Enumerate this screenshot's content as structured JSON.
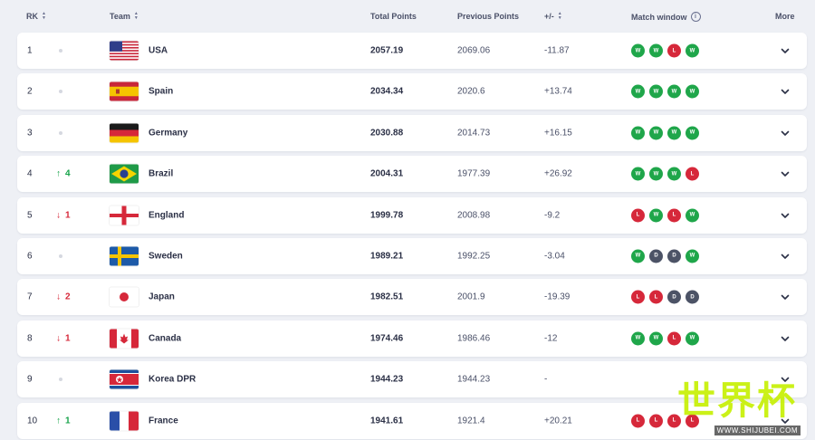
{
  "header": {
    "rank": "RK",
    "team": "Team",
    "total": "Total Points",
    "previous": "Previous Points",
    "diff": "+/-",
    "window": "Match window",
    "more": "More"
  },
  "rows": [
    {
      "rank": "1",
      "move": "",
      "dir": "none",
      "team": "USA",
      "flag": "usa-flag-icon",
      "total": "2057.19",
      "previous": "2069.06",
      "diff": "-11.87",
      "window": [
        "W",
        "W",
        "L",
        "W"
      ]
    },
    {
      "rank": "2",
      "move": "",
      "dir": "none",
      "team": "Spain",
      "flag": "spain-flag-icon",
      "total": "2034.34",
      "previous": "2020.6",
      "diff": "+13.74",
      "window": [
        "W",
        "W",
        "W",
        "W"
      ]
    },
    {
      "rank": "3",
      "move": "",
      "dir": "none",
      "team": "Germany",
      "flag": "germany-flag-icon",
      "total": "2030.88",
      "previous": "2014.73",
      "diff": "+16.15",
      "window": [
        "W",
        "W",
        "W",
        "W"
      ]
    },
    {
      "rank": "4",
      "move": "4",
      "dir": "up",
      "team": "Brazil",
      "flag": "brazil-flag-icon",
      "total": "2004.31",
      "previous": "1977.39",
      "diff": "+26.92",
      "window": [
        "W",
        "W",
        "W",
        "L"
      ]
    },
    {
      "rank": "5",
      "move": "1",
      "dir": "down",
      "team": "England",
      "flag": "england-flag-icon",
      "total": "1999.78",
      "previous": "2008.98",
      "diff": "-9.2",
      "window": [
        "L",
        "W",
        "L",
        "W"
      ]
    },
    {
      "rank": "6",
      "move": "",
      "dir": "none",
      "team": "Sweden",
      "flag": "sweden-flag-icon",
      "total": "1989.21",
      "previous": "1992.25",
      "diff": "-3.04",
      "window": [
        "W",
        "D",
        "D",
        "W"
      ]
    },
    {
      "rank": "7",
      "move": "2",
      "dir": "down",
      "team": "Japan",
      "flag": "japan-flag-icon",
      "total": "1982.51",
      "previous": "2001.9",
      "diff": "-19.39",
      "window": [
        "L",
        "L",
        "D",
        "D"
      ]
    },
    {
      "rank": "8",
      "move": "1",
      "dir": "down",
      "team": "Canada",
      "flag": "canada-flag-icon",
      "total": "1974.46",
      "previous": "1986.46",
      "diff": "-12",
      "window": [
        "W",
        "W",
        "L",
        "W"
      ]
    },
    {
      "rank": "9",
      "move": "",
      "dir": "none",
      "team": "Korea DPR",
      "flag": "korea-dpr-flag-icon",
      "total": "1944.23",
      "previous": "1944.23",
      "diff": "-",
      "window": []
    },
    {
      "rank": "10",
      "move": "1",
      "dir": "up",
      "team": "France",
      "flag": "france-flag-icon",
      "total": "1941.61",
      "previous": "1921.4",
      "diff": "+20.21",
      "window": [
        "L",
        "L",
        "L",
        "L"
      ]
    }
  ],
  "watermark": {
    "text": "世界杯",
    "url": "WWW.SHIJUBEI.COM"
  },
  "colors": {
    "win": "#1fa64a",
    "loss": "#d6283a",
    "draw": "#4c5366",
    "up": "#17a34a",
    "down": "#d6283a"
  }
}
